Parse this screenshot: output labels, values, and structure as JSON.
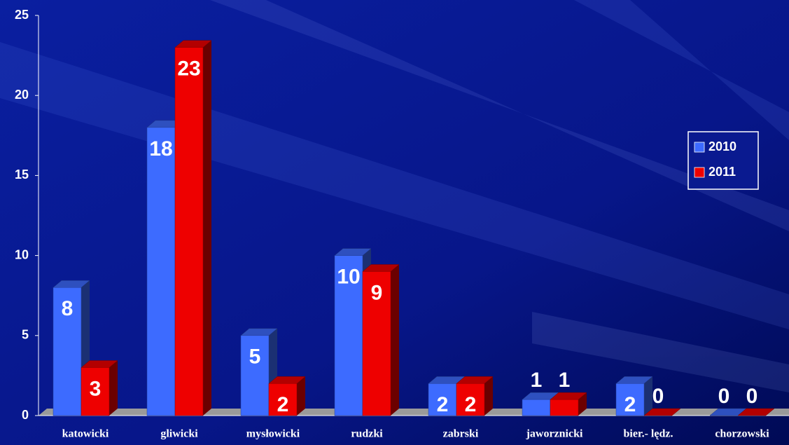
{
  "chart_data": {
    "type": "bar3d",
    "categories": [
      "katowicki",
      "gliwicki",
      "mysłowicki",
      "rudzki",
      "zabrski",
      "jaworznicki",
      "bier.- lędz.",
      "chorzowski"
    ],
    "series": [
      {
        "name": "2010",
        "color": "#3d6bff",
        "values": [
          8,
          18,
          5,
          10,
          2,
          1,
          2,
          0
        ]
      },
      {
        "name": "2011",
        "color": "#ee0000",
        "values": [
          3,
          23,
          2,
          9,
          2,
          1,
          0,
          0
        ]
      }
    ],
    "ylim": [
      0,
      25
    ],
    "yticks": [
      0,
      5,
      10,
      15,
      20,
      25
    ],
    "legend": "right"
  }
}
